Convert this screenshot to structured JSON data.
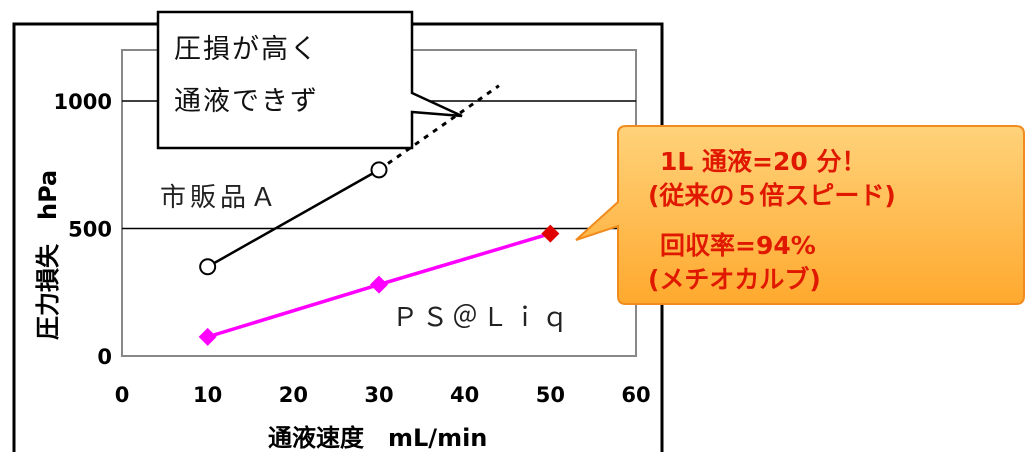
{
  "chart_data": {
    "type": "line",
    "x": [
      10,
      30,
      50
    ],
    "xlabel": "通液速度　mL/min",
    "ylabel": "圧力損失　hPa",
    "xlim": [
      0,
      60
    ],
    "ylim": [
      0,
      1200
    ],
    "x_ticks": [
      "0",
      "10",
      "20",
      "30",
      "40",
      "50",
      "60"
    ],
    "y_ticks": [
      "0",
      "500",
      "1000"
    ],
    "grid": "horizontal at 500 and 1000",
    "series": [
      {
        "name": "市販品Ａ",
        "x": [
          10,
          30
        ],
        "values": [
          350,
          730
        ],
        "marker": "open-circle",
        "color": "#000000",
        "extrapolation_dotted_to": {
          "x": 44,
          "y": 1060
        }
      },
      {
        "name": "ＰＳ＠Ｌｉｑ",
        "x": [
          10,
          30,
          50
        ],
        "values": [
          75,
          280,
          480
        ],
        "marker": "diamond",
        "color": "#ff00ff",
        "last_point_color": "#e00000"
      }
    ],
    "annotations": {
      "callout_left": [
        "圧損が高く",
        "通液できず"
      ],
      "callout_right": [
        "1L 通液=20 分！",
        "(従来の５倍スピード)",
        "回収率=94%",
        "(メチオカルブ)"
      ]
    }
  },
  "colors": {
    "callout_right_fill": "#ffb43c",
    "callout_right_text": "#e01800",
    "series_ps": "#ff00ff",
    "series_ps_last": "#e00000"
  }
}
